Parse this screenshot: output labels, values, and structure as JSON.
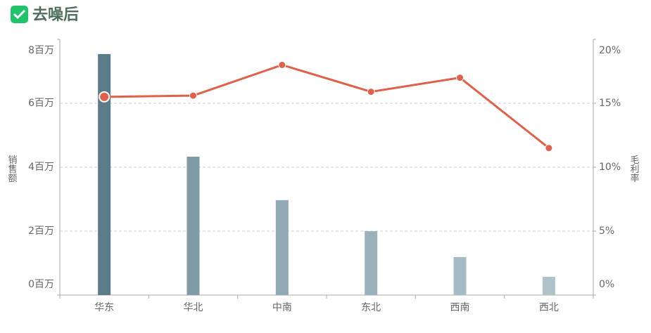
{
  "header": {
    "title": "去噪后"
  },
  "chart_data": {
    "type": "bar-line",
    "categories": [
      "华东",
      "华北",
      "中南",
      "东北",
      "西南",
      "西北"
    ],
    "series": [
      {
        "name": "销售额",
        "type": "bar",
        "colors": [
          "#5a7c89",
          "#7f9ba6",
          "#91a9b2",
          "#9cb2bb",
          "#a6bcc4",
          "#adc2c9"
        ],
        "values": [
          7540000,
          4330000,
          2970000,
          2000000,
          1190000,
          570000
        ]
      },
      {
        "name": "毛利率",
        "type": "line",
        "axis": "y2",
        "color": "#e0604a",
        "values": [
          15.5,
          15.6,
          18.0,
          15.9,
          17.0,
          11.5
        ]
      }
    ],
    "ylabel": "销售额",
    "y2label": "毛利率",
    "ylim": [
      0,
      8000000
    ],
    "yticks": [
      {
        "value": 0,
        "label": "0百万"
      },
      {
        "value": 2000000,
        "label": "2百万"
      },
      {
        "value": 4000000,
        "label": "4百万"
      },
      {
        "value": 6000000,
        "label": "6百万"
      },
      {
        "value": 8000000,
        "label": "8百万"
      }
    ],
    "y2lim": [
      0,
      20
    ],
    "y2ticks": [
      {
        "value": 0,
        "label": "0%"
      },
      {
        "value": 5,
        "label": "5%"
      },
      {
        "value": 10,
        "label": "10%"
      },
      {
        "value": 15,
        "label": "15%"
      },
      {
        "value": 20,
        "label": "20%"
      }
    ],
    "grid": true
  }
}
